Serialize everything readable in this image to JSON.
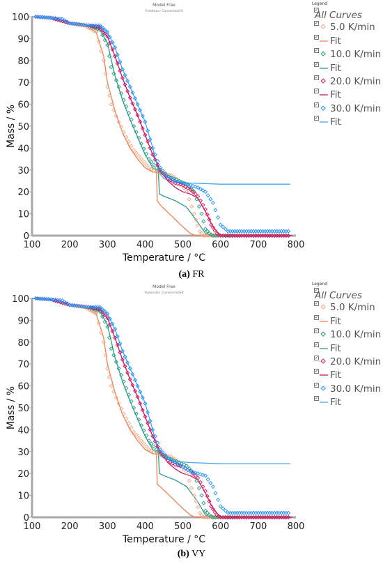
{
  "chart_data": [
    {
      "type": "scatter",
      "panel_label": "(a)",
      "caption": "FR",
      "title": "Model Free",
      "subtitle": "Friedman: ConversionFit",
      "xlabel": "Temperature / °C",
      "ylabel": "Mass / %",
      "xlim": [
        100,
        800
      ],
      "ylim": [
        0,
        100
      ],
      "xticks": [
        "100",
        "200",
        "300",
        "400",
        "500",
        "600",
        "700",
        "800"
      ],
      "yticks": [
        "0",
        "10",
        "20",
        "30",
        "40",
        "50",
        "60",
        "70",
        "80",
        "90",
        "100"
      ],
      "grid": false,
      "legend": {
        "title": "Legend",
        "all_label": "All Curves",
        "placement": "right",
        "entries": [
          {
            "label": "5.0 K/min",
            "kind": "points",
            "color": "#f4a582"
          },
          {
            "label": "Fit",
            "kind": "line",
            "color": "#f08050"
          },
          {
            "label": "10.0 K/min",
            "kind": "points",
            "color": "#1b9e77"
          },
          {
            "label": "Fit",
            "kind": "line",
            "color": "#2a9d8f"
          },
          {
            "label": "20.0 K/min",
            "kind": "points",
            "color": "#e0115f"
          },
          {
            "label": "Fit",
            "kind": "line",
            "color": "#c2185b"
          },
          {
            "label": "30.0 K/min",
            "kind": "points",
            "color": "#1e90ff"
          },
          {
            "label": "Fit",
            "kind": "line",
            "color": "#42a5f5"
          }
        ]
      },
      "series": [
        {
          "name": "5.0 K/min",
          "kind": "points",
          "color": "#f4a582",
          "x": [
            110,
            150,
            200,
            240,
            270,
            290,
            300,
            310,
            330,
            350,
            370,
            390,
            410,
            430,
            450,
            470,
            490,
            510,
            530,
            545,
            555,
            570,
            600,
            650,
            700,
            780
          ],
          "y": [
            100,
            99.5,
            97,
            96,
            93,
            80,
            68,
            60,
            52,
            45,
            39,
            35,
            31,
            29,
            28.5,
            27.5,
            25,
            20,
            10,
            2,
            0,
            0,
            0,
            0,
            0,
            0
          ]
        },
        {
          "name": "Fit",
          "kind": "line",
          "color": "#f08050",
          "x": [
            100,
            150,
            200,
            240,
            270,
            290,
            300,
            320,
            340,
            360,
            380,
            400,
            420,
            430,
            432,
            440,
            470,
            500,
            520,
            535,
            560,
            600,
            700,
            790
          ],
          "y": [
            100,
            99.5,
            97,
            96,
            93,
            82,
            70,
            57,
            47,
            40,
            35,
            31,
            29,
            29,
            16,
            14,
            9,
            4,
            1,
            0,
            0,
            0,
            0,
            0
          ]
        },
        {
          "name": "10.0 K/min",
          "kind": "points",
          "color": "#1b9e77",
          "x": [
            110,
            150,
            200,
            250,
            280,
            300,
            310,
            330,
            350,
            370,
            390,
            410,
            430,
            450,
            470,
            490,
            510,
            530,
            550,
            560,
            570,
            580,
            600,
            650,
            700,
            780
          ],
          "y": [
            100,
            99.5,
            97,
            96,
            94,
            87,
            77,
            68,
            59,
            50,
            42,
            35,
            31,
            28,
            26.5,
            25,
            23.5,
            20,
            10,
            3,
            1,
            0,
            0,
            0,
            0,
            0
          ]
        },
        {
          "name": "Fit",
          "kind": "line",
          "color": "#2a9d8f",
          "x": [
            100,
            150,
            200,
            250,
            280,
            300,
            320,
            340,
            360,
            380,
            400,
            420,
            435,
            438,
            450,
            480,
            510,
            540,
            560,
            580,
            700,
            790
          ],
          "y": [
            100,
            99.5,
            97,
            96,
            94,
            88,
            73,
            62,
            53,
            45,
            37,
            31,
            29,
            19,
            18,
            16,
            13,
            6,
            1,
            0,
            0,
            0
          ]
        },
        {
          "name": "20.0 K/min",
          "kind": "points",
          "color": "#e0115f",
          "x": [
            110,
            150,
            200,
            250,
            280,
            300,
            320,
            340,
            360,
            380,
            400,
            420,
            440,
            460,
            480,
            500,
            520,
            540,
            560,
            575,
            590,
            600,
            620,
            650,
            700,
            780
          ],
          "y": [
            100,
            99.5,
            97,
            96,
            95,
            91,
            82,
            72,
            63,
            55,
            46,
            37,
            30,
            26,
            24,
            23,
            21,
            18,
            12,
            5,
            1,
            0,
            0,
            0,
            0,
            0
          ]
        },
        {
          "name": "Fit",
          "kind": "line",
          "color": "#c2185b",
          "x": [
            100,
            150,
            200,
            250,
            280,
            300,
            320,
            340,
            360,
            380,
            400,
            420,
            440,
            460,
            480,
            500,
            520,
            540,
            560,
            580,
            600,
            700,
            790
          ],
          "y": [
            100,
            99.5,
            97,
            96,
            95,
            91,
            82,
            72,
            63,
            55,
            46,
            37,
            30,
            25,
            22,
            20,
            19,
            17,
            11,
            4,
            0,
            0,
            0
          ]
        },
        {
          "name": "30.0 K/min",
          "kind": "points",
          "color": "#1e90ff",
          "x": [
            110,
            150,
            180,
            200,
            250,
            280,
            300,
            320,
            340,
            360,
            380,
            400,
            420,
            440,
            460,
            480,
            500,
            520,
            540,
            560,
            580,
            600,
            620,
            650,
            700,
            780
          ],
          "y": [
            100,
            99.5,
            99,
            97,
            96,
            96,
            93,
            86,
            76,
            68,
            60,
            52,
            40,
            31,
            27,
            25,
            24,
            23,
            22,
            20,
            15,
            5,
            2,
            2,
            2,
            2
          ]
        },
        {
          "name": "Fit",
          "kind": "line",
          "color": "#42a5f5",
          "x": [
            100,
            150,
            200,
            250,
            280,
            300,
            320,
            340,
            360,
            380,
            400,
            420,
            430,
            440,
            450,
            480,
            520,
            600,
            700,
            785
          ],
          "y": [
            100,
            99.5,
            97,
            96,
            96,
            93,
            86,
            76,
            68,
            60,
            52,
            40,
            33,
            28,
            26,
            24.5,
            24,
            23.5,
            23.5,
            23.5
          ]
        }
      ]
    },
    {
      "type": "scatter",
      "panel_label": "(b)",
      "caption": "VY",
      "title": "Model Free",
      "subtitle": "Vyazovkin: ConversionFit",
      "xlabel": "Temperature / °C",
      "ylabel": "Mass / %",
      "xlim": [
        100,
        800
      ],
      "ylim": [
        0,
        100
      ],
      "xticks": [
        "100",
        "200",
        "300",
        "400",
        "500",
        "600",
        "700",
        "800"
      ],
      "yticks": [
        "0",
        "10",
        "20",
        "30",
        "40",
        "50",
        "60",
        "70",
        "80",
        "90",
        "100"
      ],
      "grid": false,
      "legend": {
        "title": "Legend",
        "all_label": "All Curves",
        "placement": "right",
        "entries": [
          {
            "label": "5.0 K/min",
            "kind": "points",
            "color": "#f4a582"
          },
          {
            "label": "Fit",
            "kind": "line",
            "color": "#f08050"
          },
          {
            "label": "10.0 K/min",
            "kind": "points",
            "color": "#1b9e77"
          },
          {
            "label": "Fit",
            "kind": "line",
            "color": "#2a9d8f"
          },
          {
            "label": "20.0 K/min",
            "kind": "points",
            "color": "#e0115f"
          },
          {
            "label": "Fit",
            "kind": "line",
            "color": "#c2185b"
          },
          {
            "label": "30.0 K/min",
            "kind": "points",
            "color": "#1e90ff"
          },
          {
            "label": "Fit",
            "kind": "line",
            "color": "#42a5f5"
          }
        ]
      },
      "series": [
        {
          "name": "5.0 K/min",
          "kind": "points",
          "color": "#f4a582",
          "x": [
            110,
            150,
            200,
            240,
            270,
            290,
            300,
            310,
            330,
            350,
            370,
            390,
            410,
            430,
            450,
            470,
            490,
            510,
            530,
            545,
            555,
            570,
            600,
            650,
            700,
            780
          ],
          "y": [
            100,
            99.5,
            97,
            96,
            93,
            80,
            68,
            60,
            52,
            45,
            39,
            35,
            31,
            29,
            28.5,
            27.5,
            25,
            20,
            10,
            2,
            0,
            0,
            0,
            0,
            0,
            0
          ]
        },
        {
          "name": "Fit",
          "kind": "line",
          "color": "#f08050",
          "x": [
            100,
            150,
            200,
            240,
            270,
            290,
            300,
            320,
            340,
            360,
            380,
            400,
            420,
            430,
            432,
            440,
            470,
            500,
            520,
            535,
            560,
            600,
            700,
            790
          ],
          "y": [
            100,
            99.5,
            97,
            96,
            93,
            82,
            70,
            57,
            47,
            40,
            35,
            31,
            29,
            29,
            15,
            14,
            9,
            4,
            1,
            0,
            0,
            0,
            0,
            0
          ]
        },
        {
          "name": "10.0 K/min",
          "kind": "points",
          "color": "#1b9e77",
          "x": [
            110,
            150,
            200,
            250,
            280,
            300,
            310,
            330,
            350,
            370,
            390,
            410,
            430,
            450,
            470,
            490,
            510,
            530,
            550,
            560,
            570,
            580,
            600,
            650,
            700,
            780
          ],
          "y": [
            100,
            99.5,
            97,
            96,
            94,
            87,
            77,
            68,
            59,
            50,
            42,
            35,
            31,
            28,
            26.5,
            25,
            23.5,
            20,
            10,
            3,
            1,
            0,
            0,
            0,
            0,
            0
          ]
        },
        {
          "name": "Fit",
          "kind": "line",
          "color": "#2a9d8f",
          "x": [
            100,
            150,
            200,
            250,
            280,
            300,
            320,
            340,
            360,
            380,
            400,
            420,
            435,
            438,
            450,
            480,
            510,
            540,
            560,
            580,
            700,
            790
          ],
          "y": [
            100,
            99.5,
            97,
            96,
            94,
            88,
            73,
            62,
            53,
            45,
            37,
            31,
            29,
            20,
            19,
            17,
            14,
            7,
            1,
            0,
            0,
            0
          ]
        },
        {
          "name": "20.0 K/min",
          "kind": "points",
          "color": "#e0115f",
          "x": [
            110,
            150,
            200,
            250,
            280,
            300,
            320,
            340,
            360,
            380,
            400,
            420,
            440,
            460,
            480,
            500,
            520,
            540,
            560,
            575,
            590,
            600,
            620,
            650,
            700,
            780
          ],
          "y": [
            100,
            99.5,
            97,
            96,
            95,
            91,
            82,
            72,
            63,
            55,
            46,
            37,
            30,
            26,
            24,
            23,
            21,
            18,
            12,
            5,
            1,
            0,
            0,
            0,
            0,
            0
          ]
        },
        {
          "name": "Fit",
          "kind": "line",
          "color": "#c2185b",
          "x": [
            100,
            150,
            200,
            250,
            280,
            300,
            320,
            340,
            360,
            380,
            400,
            420,
            440,
            460,
            480,
            500,
            520,
            540,
            560,
            580,
            600,
            700,
            790
          ],
          "y": [
            100,
            99.5,
            97,
            96,
            95,
            91,
            82,
            72,
            63,
            55,
            46,
            37,
            30,
            25,
            22,
            20,
            19,
            17,
            11,
            4,
            0,
            0,
            0
          ]
        },
        {
          "name": "30.0 K/min",
          "kind": "points",
          "color": "#1e90ff",
          "x": [
            110,
            150,
            180,
            200,
            250,
            280,
            300,
            320,
            340,
            360,
            380,
            400,
            420,
            440,
            460,
            480,
            500,
            520,
            540,
            560,
            580,
            600,
            620,
            650,
            700,
            780
          ],
          "y": [
            100,
            99.5,
            99,
            97,
            96,
            96,
            93,
            86,
            76,
            68,
            60,
            52,
            40,
            31,
            27,
            25,
            23,
            21,
            20,
            19,
            14,
            5,
            2,
            2,
            2,
            2
          ]
        },
        {
          "name": "Fit",
          "kind": "line",
          "color": "#42a5f5",
          "x": [
            100,
            150,
            200,
            250,
            280,
            300,
            320,
            340,
            360,
            380,
            400,
            420,
            430,
            440,
            450,
            480,
            520,
            600,
            700,
            785
          ],
          "y": [
            100,
            99.5,
            97,
            96,
            96,
            93,
            86,
            76,
            68,
            60,
            52,
            40,
            33,
            28,
            27,
            25.5,
            25,
            24.5,
            24.5,
            24.5
          ]
        }
      ]
    }
  ]
}
